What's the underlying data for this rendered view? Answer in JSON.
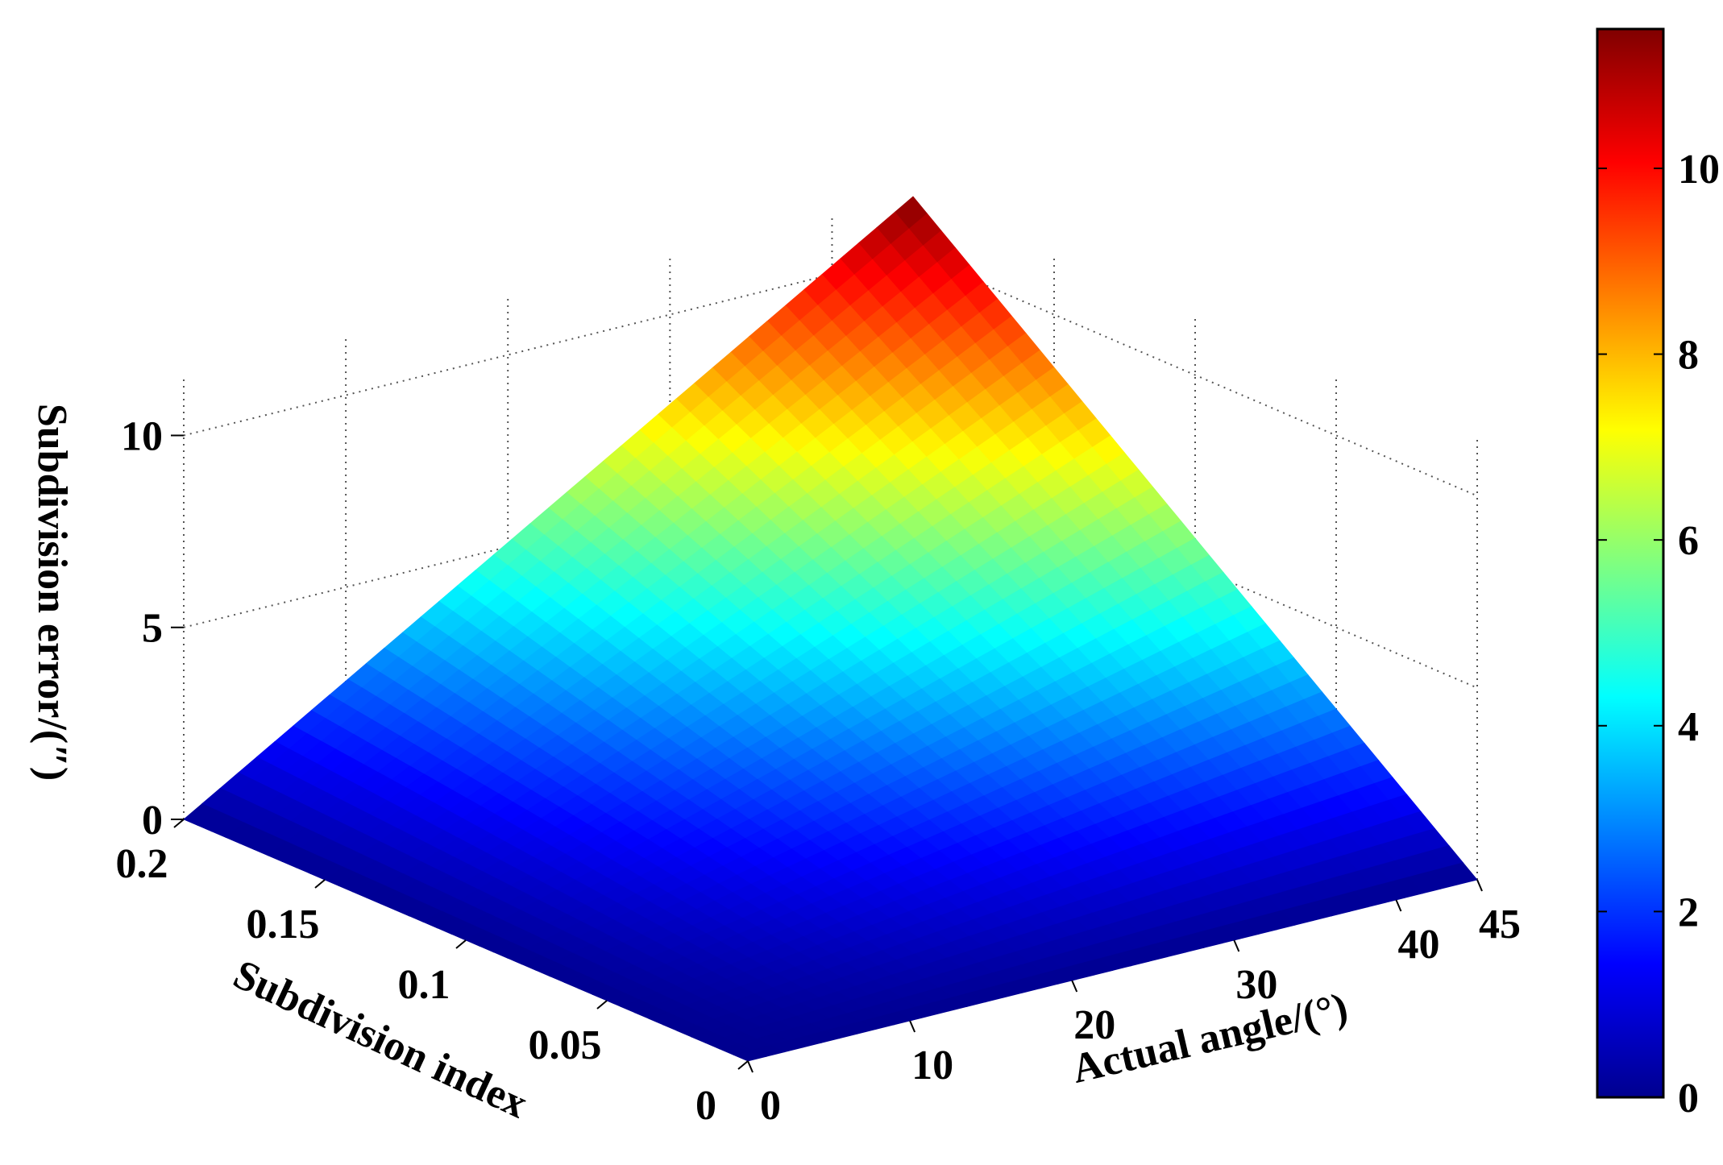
{
  "chart_data": {
    "type": "surface",
    "title": "",
    "xlabel": "Actual angle/(°)",
    "ylabel": "Subdivision index",
    "zlabel": "Subdivision error/(″)",
    "x_ticks": [
      "0",
      "10",
      "20",
      "30",
      "40",
      "45"
    ],
    "x_tick_values": [
      0,
      10,
      20,
      30,
      40,
      45
    ],
    "y_ticks": [
      "0",
      "0.05",
      "0.1",
      "0.15",
      "0.2"
    ],
    "y_tick_values": [
      0,
      0.05,
      0.1,
      0.15,
      0.2
    ],
    "z_ticks": [
      "0",
      "5",
      "10"
    ],
    "z_tick_values": [
      0,
      5,
      10
    ],
    "xlim": [
      0,
      45
    ],
    "ylim": [
      0,
      0.2
    ],
    "zlim": [
      0,
      11.5
    ],
    "grid": true,
    "colormap": "jet",
    "colorbar": {
      "ticks": [
        "0",
        "2",
        "4",
        "6",
        "8",
        "10"
      ],
      "tick_values": [
        0,
        2,
        4,
        6,
        8,
        10
      ],
      "range": [
        0,
        11.5
      ]
    },
    "surface": {
      "x": [
        0,
        45
      ],
      "y": [
        0,
        0.2
      ],
      "z_corners": {
        "x0_y0": 0,
        "x45_y0": 0,
        "x0_y0.2": 0,
        "x45_y0.2": 11.5
      },
      "description_of_shape": "error rises from 0 toward the corner x=45, y=0.2"
    }
  }
}
